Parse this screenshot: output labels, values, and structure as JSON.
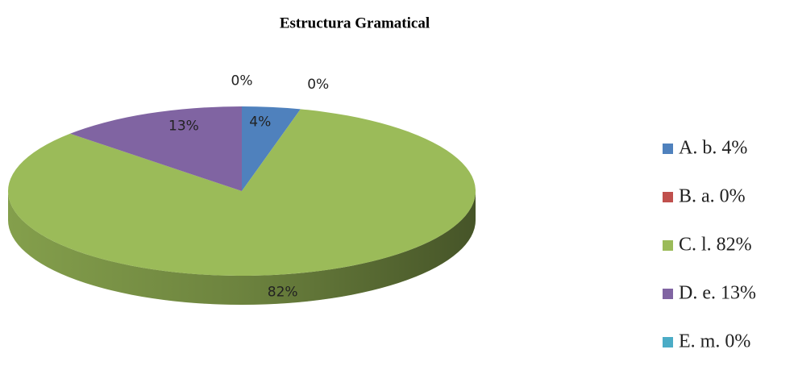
{
  "chart_data": {
    "type": "pie",
    "title": "Estructura Gramatical",
    "categories": [
      "A. b. 4%",
      "B. a. 0%",
      "C. l. 82%",
      "D. e. 13%",
      "E. m. 0%"
    ],
    "values": [
      4,
      0,
      82,
      13,
      0
    ],
    "value_labels": [
      "4%",
      "0%",
      "82%",
      "13%",
      "0%"
    ],
    "colors": [
      "#4f81bd",
      "#c0504d",
      "#9bbb59",
      "#8064a2",
      "#4bacc6"
    ],
    "legend": "right"
  }
}
